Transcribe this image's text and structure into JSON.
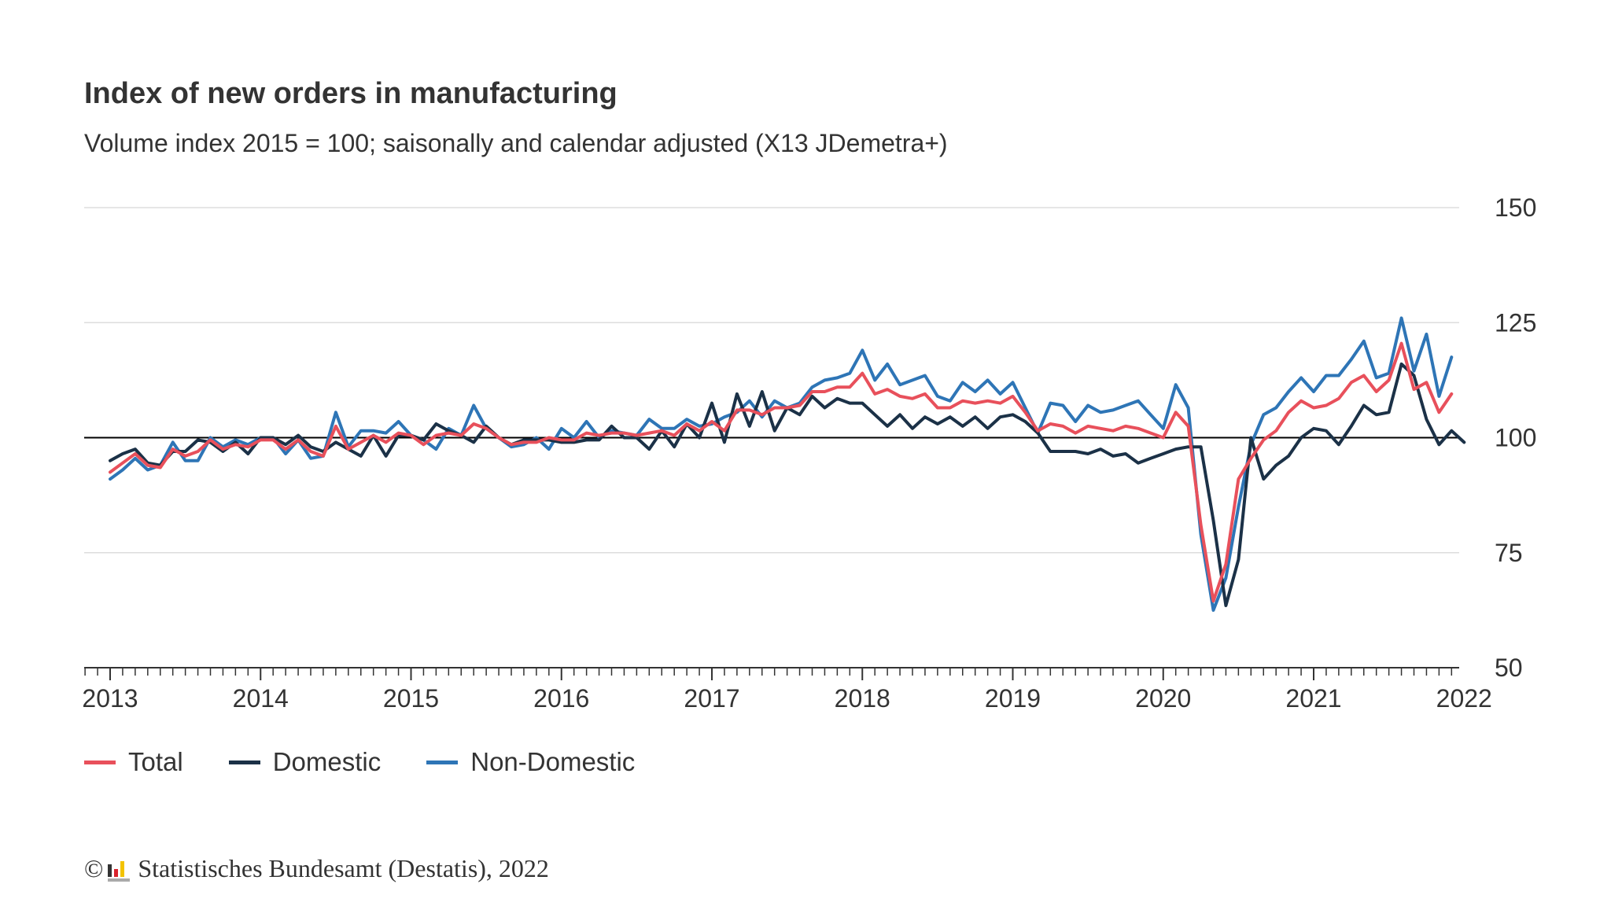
{
  "title": "Index of new orders in manufacturing",
  "subtitle": "Volume index 2015 = 100; saisonally and calendar adjusted (X13 JDemetra+)",
  "legend": [
    "Total",
    "Domestic",
    "Non-Domestic"
  ],
  "footer": {
    "copyright_symbol": "©",
    "text": "Statistisches Bundesamt (Destatis), 2022",
    "logo_icon": "destatis-logo-icon"
  },
  "colors": {
    "total": "#e8505b",
    "domestic": "#1b3147",
    "non_domestic": "#2e75b6",
    "reference_line": "#000000",
    "grid": "#dddddd"
  },
  "chart_data": {
    "type": "line",
    "x_start": "2013-01",
    "x_frequency": "monthly",
    "x_ticks": [
      "2013",
      "2014",
      "2015",
      "2016",
      "2017",
      "2018",
      "2019",
      "2020",
      "2021",
      "2022"
    ],
    "y_ticks": [
      150,
      125,
      100,
      75,
      50
    ],
    "ylim": [
      50,
      150
    ],
    "y_axis_position": "right",
    "reference_line": 100,
    "grid": true,
    "legend_position": "bottom-left",
    "series": [
      {
        "name": "Total",
        "values": [
          92.5,
          94.5,
          96.5,
          94,
          93.5,
          97.5,
          96,
          97,
          99.5,
          97.5,
          98.5,
          98,
          99.5,
          99.5,
          97.5,
          99.5,
          97,
          96,
          102.5,
          97.5,
          99,
          100.5,
          99,
          101,
          100.5,
          98.5,
          100.5,
          101,
          100.5,
          103,
          102,
          100,
          98.5,
          99,
          99,
          100,
          99.5,
          99.5,
          101,
          100.5,
          101,
          101,
          100.5,
          101,
          101.5,
          100.5,
          103,
          101.5,
          103.5,
          101.5,
          106,
          106,
          105,
          106.5,
          106.5,
          107,
          110,
          110,
          111,
          111,
          114,
          109.5,
          110.5,
          109,
          108.5,
          109.5,
          106.5,
          106.5,
          108,
          107.5,
          108,
          107.5,
          109,
          105.5,
          101.5,
          103,
          102.5,
          101,
          102.5,
          102,
          101.5,
          102.5,
          102,
          101,
          100,
          105.5,
          102.5,
          81,
          64.5,
          72.5,
          91,
          95.5,
          99.5,
          101.5,
          105.5,
          108,
          106.5,
          107,
          108.5,
          112,
          113.5,
          110,
          112.5,
          120.5,
          110.5,
          112,
          105.5,
          109.5
        ]
      },
      {
        "name": "Domestic",
        "values": [
          95,
          96.5,
          97.5,
          94.5,
          94,
          97,
          97,
          99.5,
          99,
          97,
          99,
          96.5,
          100,
          100,
          98.5,
          100.5,
          98,
          97,
          99,
          97.5,
          96,
          100.5,
          96,
          100.5,
          100.5,
          99.5,
          103,
          101.5,
          100.5,
          99,
          102.5,
          100,
          98.5,
          99.5,
          99.5,
          99.5,
          99,
          99,
          99.5,
          99.5,
          102.5,
          100,
          100,
          97.5,
          101.5,
          98,
          103,
          100,
          107.5,
          99,
          109.5,
          102.5,
          110,
          101.5,
          106.5,
          105,
          109,
          106.5,
          108.5,
          107.5,
          107.5,
          105,
          102.5,
          105,
          102,
          104.5,
          103,
          104.5,
          102.5,
          104.5,
          102,
          104.5,
          105,
          103.5,
          101,
          97,
          97,
          97,
          96.5,
          97.5,
          96,
          96.5,
          94.5,
          95.5,
          96.5,
          97.5,
          98,
          98,
          82,
          63.5,
          73.5,
          100,
          91,
          94,
          96,
          100,
          102,
          101.5,
          98.5,
          102.5,
          107,
          105,
          105.5,
          116,
          113.5,
          104,
          98.5,
          101.5,
          99
        ]
      },
      {
        "name": "Non-Domestic",
        "values": [
          91,
          93,
          95.5,
          93,
          94,
          99,
          95,
          95,
          100,
          98,
          99.5,
          98.5,
          100,
          100,
          96.5,
          99.5,
          95.5,
          96,
          105.5,
          98,
          101.5,
          101.5,
          101,
          103.5,
          100.5,
          99.5,
          97.5,
          102,
          100.5,
          107,
          102,
          100,
          98,
          98.5,
          100,
          97.5,
          102,
          100,
          103.5,
          100,
          101.5,
          101,
          100.5,
          104,
          102,
          102,
          104,
          102.5,
          103,
          104.5,
          105.5,
          108,
          104.5,
          108,
          106.5,
          107.5,
          111,
          112.5,
          113,
          114,
          119,
          112.5,
          116,
          111.5,
          112.5,
          113.5,
          109,
          108,
          112,
          110,
          112.5,
          109.5,
          112,
          106.5,
          101,
          107.5,
          107,
          103.5,
          107,
          105.5,
          106,
          107,
          108,
          105,
          102,
          111.5,
          106.5,
          79,
          62.5,
          69.5,
          85,
          98.5,
          105,
          106.5,
          110,
          113,
          110,
          113.5,
          113.5,
          117,
          121,
          113,
          114,
          126,
          114.5,
          122.5,
          109,
          117.5
        ]
      }
    ]
  }
}
